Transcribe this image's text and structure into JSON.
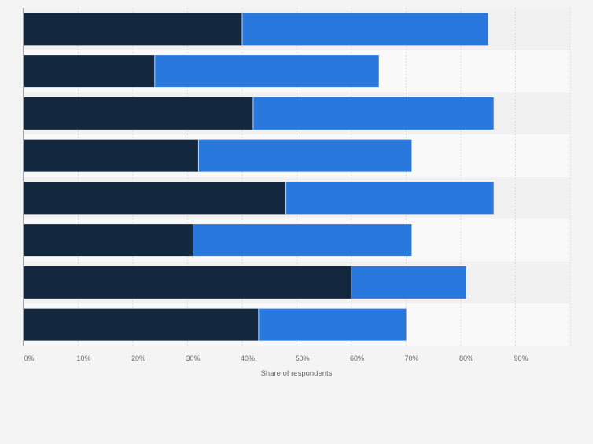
{
  "chart_data": {
    "type": "bar",
    "orientation": "horizontal",
    "stacked": true,
    "categories": [
      "",
      "",
      "",
      "",
      "",
      "",
      "",
      ""
    ],
    "series": [
      {
        "values": [
          40,
          24,
          42,
          32,
          48,
          31,
          60,
          43
        ],
        "color": "#13273f"
      },
      {
        "values": [
          45,
          41,
          44,
          39,
          38,
          40,
          21,
          27
        ],
        "color": "#2878de"
      }
    ],
    "x_ticks": [
      "0%",
      "10%",
      "20%",
      "30%",
      "40%",
      "50%",
      "60%",
      "70%",
      "80%",
      "90%"
    ],
    "xlabel": "Share of respondents",
    "ylabel": "",
    "xlim": [
      0,
      100
    ],
    "grid": true
  },
  "colors": {
    "background": "#f4f4f4",
    "band_light": "#f9f9f9",
    "band_dark": "#f1f1f1",
    "gridline": "#d4d4d4",
    "axis": "#555555",
    "tick_text": "#666666"
  }
}
